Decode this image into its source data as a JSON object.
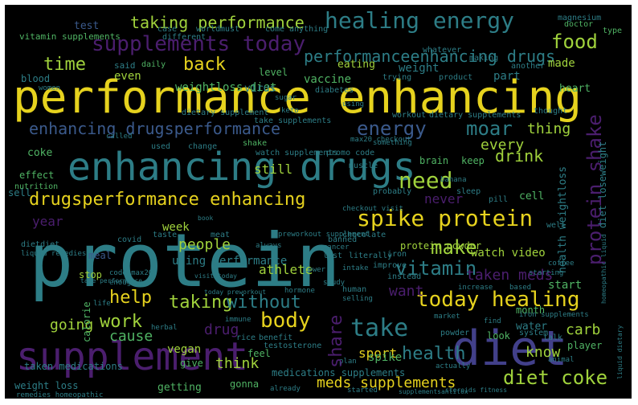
{
  "palette": {
    "yellow": "#e6d21e",
    "lime": "#a0d23c",
    "green": "#50b464",
    "teal": "#2d7d86",
    "blue": "#3b5a8c",
    "indigo": "#42408a",
    "purple": "#4b1e6e",
    "background": "#000000"
  },
  "words": [
    {
      "text": "performance enhancing",
      "c": "yellow"
    },
    {
      "text": "protein",
      "c": "teal"
    },
    {
      "text": "enhancing drugs",
      "c": "teal"
    },
    {
      "text": "supplement",
      "c": "purple"
    },
    {
      "text": "diet",
      "c": "indigo"
    },
    {
      "text": "healing energy",
      "c": "teal"
    },
    {
      "text": "supplements today",
      "c": "purple"
    },
    {
      "text": "performanceenhancing drugs",
      "c": "teal"
    },
    {
      "text": "enhancing drugsperformance",
      "c": "blue"
    },
    {
      "text": "energy",
      "c": "blue"
    },
    {
      "text": "moar",
      "c": "teal"
    },
    {
      "text": "drugsperformance enhancing",
      "c": "yellow"
    },
    {
      "text": "spike protein",
      "c": "yellow"
    },
    {
      "text": "need",
      "c": "lime"
    },
    {
      "text": "food",
      "c": "lime"
    },
    {
      "text": "taking performance",
      "c": "lime"
    },
    {
      "text": "time",
      "c": "lime"
    },
    {
      "text": "back",
      "c": "yellow"
    },
    {
      "text": "today healing",
      "c": "yellow"
    },
    {
      "text": "take",
      "c": "teal"
    },
    {
      "text": "body",
      "c": "yellow"
    },
    {
      "text": "vitamin",
      "c": "teal"
    },
    {
      "text": "diet coke",
      "c": "lime"
    },
    {
      "text": "meds supplements",
      "c": "yellow"
    },
    {
      "text": "protein shake",
      "c": "purple"
    },
    {
      "text": "health",
      "c": "teal"
    },
    {
      "text": "share",
      "c": "purple"
    },
    {
      "text": "help",
      "c": "yellow"
    },
    {
      "text": "taking",
      "c": "lime"
    },
    {
      "text": "people",
      "c": "lime"
    },
    {
      "text": "make",
      "c": "lime"
    },
    {
      "text": "taken meds",
      "c": "purple"
    },
    {
      "text": "want",
      "c": "purple"
    },
    {
      "text": "work",
      "c": "lime"
    },
    {
      "text": "going",
      "c": "lime"
    },
    {
      "text": "cause",
      "c": "green"
    },
    {
      "text": "without",
      "c": "teal"
    },
    {
      "text": "drug",
      "c": "purple"
    },
    {
      "text": "think",
      "c": "lime"
    },
    {
      "text": "know",
      "c": "lime"
    },
    {
      "text": "carb",
      "c": "lime"
    },
    {
      "text": "drink",
      "c": "lime"
    },
    {
      "text": "every",
      "c": "lime"
    },
    {
      "text": "thing",
      "c": "lime"
    },
    {
      "text": "weight",
      "c": "teal"
    },
    {
      "text": "made",
      "c": "lime"
    },
    {
      "text": "still",
      "c": "lime"
    },
    {
      "text": "never",
      "c": "purple"
    },
    {
      "text": "year",
      "c": "purple"
    },
    {
      "text": "test",
      "c": "blue"
    },
    {
      "text": "vitamin supplements",
      "c": "green"
    },
    {
      "text": "weightloss diet",
      "c": "green"
    },
    {
      "text": "vaccine",
      "c": "green"
    },
    {
      "text": "even",
      "c": "lime"
    },
    {
      "text": "blood",
      "c": "teal"
    },
    {
      "text": "eating",
      "c": "lime"
    },
    {
      "text": "part",
      "c": "teal"
    },
    {
      "text": "level",
      "c": "green"
    },
    {
      "text": "virus",
      "c": "teal"
    },
    {
      "text": "said",
      "c": "teal"
    },
    {
      "text": "daily",
      "c": "green"
    },
    {
      "text": "heart",
      "c": "green"
    },
    {
      "text": "magnesium",
      "c": "teal"
    },
    {
      "text": "doctor",
      "c": "green"
    },
    {
      "text": "type",
      "c": "green"
    },
    {
      "text": "coke",
      "c": "green"
    },
    {
      "text": "effect",
      "c": "green"
    },
    {
      "text": "sell",
      "c": "teal"
    },
    {
      "text": "nutrition",
      "c": "green"
    },
    {
      "text": "brain",
      "c": "green"
    },
    {
      "text": "keep",
      "c": "green"
    },
    {
      "text": "cell",
      "c": "green"
    },
    {
      "text": "week",
      "c": "lime"
    },
    {
      "text": "using performance",
      "c": "teal"
    },
    {
      "text": "athlete",
      "c": "lime"
    },
    {
      "text": "watch video",
      "c": "lime"
    },
    {
      "text": "protein powder",
      "c": "lime"
    },
    {
      "text": "start",
      "c": "green"
    },
    {
      "text": "stop",
      "c": "lime"
    },
    {
      "text": "vegan",
      "c": "lime"
    },
    {
      "text": "sport",
      "c": "yellow"
    },
    {
      "text": "spike",
      "c": "green"
    },
    {
      "text": "water",
      "c": "teal"
    },
    {
      "text": "player",
      "c": "green"
    },
    {
      "text": "month",
      "c": "green"
    },
    {
      "text": "give",
      "c": "green"
    },
    {
      "text": "feel",
      "c": "green"
    },
    {
      "text": "look",
      "c": "green"
    },
    {
      "text": "getting",
      "c": "green"
    },
    {
      "text": "gonna",
      "c": "green"
    },
    {
      "text": "taken medications",
      "c": "teal"
    },
    {
      "text": "medications supplements",
      "c": "teal"
    },
    {
      "text": "weight loss",
      "c": "teal"
    },
    {
      "text": "calorie",
      "c": "green"
    },
    {
      "text": "health weightloss",
      "c": "teal"
    },
    {
      "text": "diet loseweight",
      "c": "teal"
    },
    {
      "text": "meal",
      "c": "blue"
    },
    {
      "text": "women",
      "c": "teal"
    },
    {
      "text": "world",
      "c": "teal"
    },
    {
      "text": "must",
      "c": "teal"
    },
    {
      "text": "come",
      "c": "teal"
    },
    {
      "text": "anything",
      "c": "teal"
    },
    {
      "text": "case",
      "c": "teal"
    },
    {
      "text": "different",
      "c": "teal"
    },
    {
      "text": "whatever",
      "c": "teal"
    },
    {
      "text": "making",
      "c": "teal"
    },
    {
      "text": "another",
      "c": "teal"
    },
    {
      "text": "diabetes",
      "c": "teal"
    },
    {
      "text": "trying",
      "c": "teal"
    },
    {
      "text": "product",
      "c": "teal"
    },
    {
      "text": "sugar",
      "c": "teal"
    },
    {
      "text": "keto",
      "c": "teal"
    },
    {
      "text": "using",
      "c": "teal"
    },
    {
      "text": "workout",
      "c": "teal"
    },
    {
      "text": "dietary supplements",
      "c": "teal"
    },
    {
      "text": "thought",
      "c": "teal"
    },
    {
      "text": "dietary supplement",
      "c": "teal"
    },
    {
      "text": "take supplements",
      "c": "teal"
    },
    {
      "text": "called",
      "c": "teal"
    },
    {
      "text": "used",
      "c": "teal"
    },
    {
      "text": "change",
      "c": "teal"
    },
    {
      "text": "shake",
      "c": "green"
    },
    {
      "text": "watch supplements",
      "c": "teal"
    },
    {
      "text": "promo code",
      "c": "teal"
    },
    {
      "text": "max20 checkout",
      "c": "teal"
    },
    {
      "text": "muscle",
      "c": "teal"
    },
    {
      "text": "something",
      "c": "teal"
    },
    {
      "text": "taste",
      "c": "teal"
    },
    {
      "text": "meat",
      "c": "teal"
    },
    {
      "text": "preworkout supplement",
      "c": "teal"
    },
    {
      "text": "chocolate",
      "c": "teal"
    },
    {
      "text": "banana",
      "c": "teal"
    },
    {
      "text": "probably",
      "c": "teal"
    },
    {
      "text": "sleep",
      "c": "teal"
    },
    {
      "text": "pill",
      "c": "teal"
    },
    {
      "text": "checkout visit",
      "c": "teal"
    },
    {
      "text": "covid",
      "c": "teal"
    },
    {
      "text": "banned",
      "c": "teal"
    },
    {
      "text": "cancer",
      "c": "teal"
    },
    {
      "text": "always",
      "c": "teal"
    },
    {
      "text": "last",
      "c": "teal"
    },
    {
      "text": "literally",
      "c": "teal"
    },
    {
      "text": "iron",
      "c": "teal"
    },
    {
      "text": "dietdiet",
      "c": "teal"
    },
    {
      "text": "liquid remedies",
      "c": "teal"
    },
    {
      "text": "intake",
      "c": "teal"
    },
    {
      "text": "coffee",
      "c": "teal"
    },
    {
      "text": "instead",
      "c": "teal"
    },
    {
      "text": "starting",
      "c": "teal"
    },
    {
      "text": "improve",
      "c": "teal"
    },
    {
      "text": "enough",
      "c": "teal"
    },
    {
      "text": "lower",
      "c": "teal"
    },
    {
      "text": "study",
      "c": "teal"
    },
    {
      "text": "human",
      "c": "teal"
    },
    {
      "text": "increase",
      "c": "teal"
    },
    {
      "text": "based",
      "c": "teal"
    },
    {
      "text": "hormone",
      "c": "teal"
    },
    {
      "text": "immune",
      "c": "teal"
    },
    {
      "text": "selling",
      "c": "teal"
    },
    {
      "text": "market",
      "c": "teal"
    },
    {
      "text": "life",
      "c": "teal"
    },
    {
      "text": "herbal",
      "c": "teal"
    },
    {
      "text": "rice",
      "c": "teal"
    },
    {
      "text": "benefit",
      "c": "teal"
    },
    {
      "text": "testosterone",
      "c": "teal"
    },
    {
      "text": "powder",
      "c": "teal"
    },
    {
      "text": "find",
      "c": "teal"
    },
    {
      "text": "iron supplements",
      "c": "teal"
    },
    {
      "text": "system",
      "c": "teal"
    },
    {
      "text": "talk",
      "c": "teal"
    },
    {
      "text": "animal",
      "c": "teal"
    },
    {
      "text": "plan",
      "c": "teal"
    },
    {
      "text": "actually",
      "c": "teal"
    },
    {
      "text": "already",
      "c": "teal"
    },
    {
      "text": "started",
      "c": "teal"
    },
    {
      "text": "remedies homeopathic",
      "c": "teal"
    },
    {
      "text": "liquid dietary",
      "c": "teal"
    },
    {
      "text": "homeopathic liquid",
      "c": "teal"
    },
    {
      "text": "visit today",
      "c": "teal"
    },
    {
      "text": "code max20",
      "c": "teal"
    },
    {
      "text": "take performance",
      "c": "teal"
    },
    {
      "text": "book",
      "c": "teal"
    },
    {
      "text": "today preworkout",
      "c": "teal"
    },
    {
      "text": "steroids fitness",
      "c": "teal"
    },
    {
      "text": "supplementsantitox",
      "c": "teal"
    },
    {
      "text": "well",
      "c": "teal"
    }
  ]
}
